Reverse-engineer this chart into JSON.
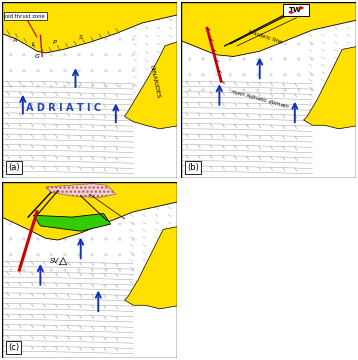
{
  "panels": [
    "(a)",
    "(b)",
    "(c)"
  ],
  "background_color": "#f0f0f0",
  "white_bg": "#ffffff",
  "yellow_fill": "#FFE000",
  "green_fill": "#33CC00",
  "red_color": "#CC0000",
  "blue_arrow_color": "#1133BB",
  "line_color": "#555555",
  "cross_color": "#999999",
  "strata_color": "#888888",
  "panel_label_fs": 6,
  "adriatic_fs": 7,
  "dinarides_fs": 5
}
